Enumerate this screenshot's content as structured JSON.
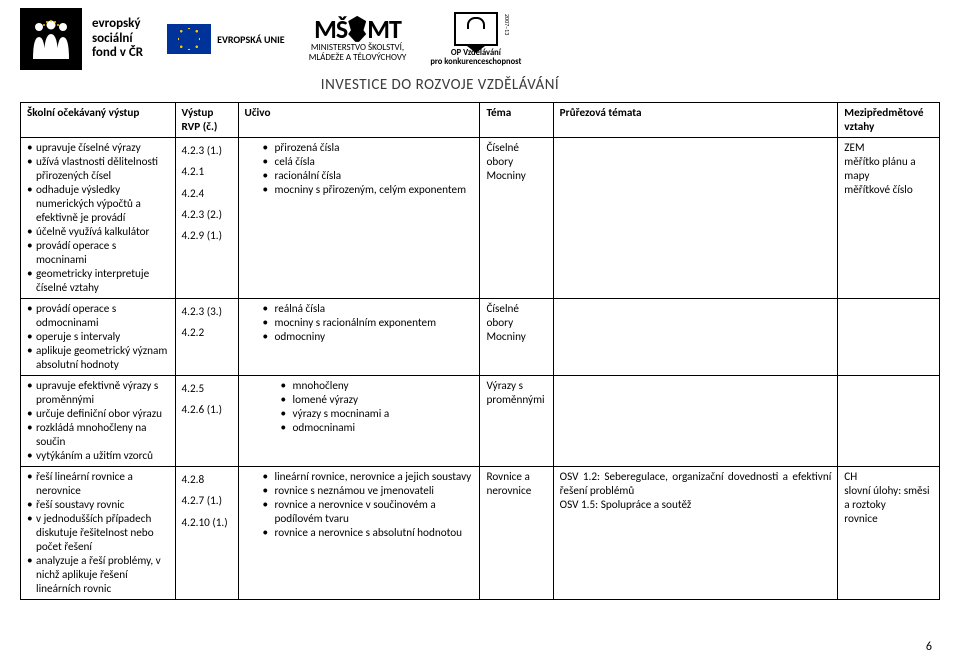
{
  "header": {
    "esf": {
      "line1": "evropský",
      "line2": "sociální",
      "line3": "fond v ČR"
    },
    "eu": "EVROPSKÁ UNIE",
    "msmt": {
      "line1": "MINISTERSTVO ŠKOLSTVÍ,",
      "line2": "MLÁDEŽE A TĚLOVÝCHOVY"
    },
    "opvk": {
      "line1": "OP Vzdělávání",
      "line2": "pro konkurenceschopnost",
      "side": "2007–13"
    },
    "tagline": "INVESTICE DO ROZVOJE VZDĚLÁVÁNÍ"
  },
  "table": {
    "headers": {
      "c1": "Školní očekávaný výstup",
      "c2a": "Výstup",
      "c2b": "RVP (č.)",
      "c3": "Učivo",
      "c4": "Téma",
      "c5": "Průřezová témata",
      "c6a": "Mezipředmětové",
      "c6b": "vztahy"
    },
    "rows": [
      {
        "outcomes": [
          "upravuje číselné výrazy",
          "užívá vlastnosti dělitelnosti přirozených čísel",
          "odhaduje výsledky numerických výpočtů a efektivně je provádí",
          "účelně využívá kalkulátor",
          "provádí operace s mocninami",
          "geometricky interpretuje číselné vztahy"
        ],
        "codes": [
          "4.2.3 (1.)",
          "4.2.1",
          "4.2.4",
          "4.2.3 (2.)",
          "4.2.9 (1.)"
        ],
        "ucivo": [
          "přirozená čísla",
          "celá čísla",
          "racionální čísla",
          "mocniny s přirozeným, celým exponentem"
        ],
        "tema": [
          "Číselné",
          "obory",
          "Mocniny"
        ],
        "pruz": "",
        "mez": [
          "ZEM",
          "měřítko plánu a mapy",
          "měřítkové číslo"
        ]
      },
      {
        "outcomes": [
          "provádí operace s odmocninami",
          "operuje s intervaly",
          "aplikuje geometrický význam absolutní hodnoty"
        ],
        "codes": [
          "4.2.3 (3.)",
          "4.2.2"
        ],
        "ucivo": [
          "reálná čísla",
          "mocniny s racionálním exponentem",
          "odmocniny"
        ],
        "tema": [
          "Číselné",
          "obory",
          "Mocniny"
        ],
        "pruz": "",
        "mez": []
      },
      {
        "outcomes": [
          "upravuje efektivně výrazy s proměnnými",
          "určuje definiční obor výrazu",
          "rozkládá mnohočleny na součin",
          "vytýkáním a užitím vzorců"
        ],
        "codes": [
          "4.2.5",
          "4.2.6 (1.)"
        ],
        "ucivo_groups": [
          [
            "mnohočleny",
            "lomené výrazy",
            "výrazy s mocninami a",
            "odmocninami"
          ]
        ],
        "tema": [
          "Výrazy s",
          "proměnnými"
        ],
        "pruz": "",
        "mez": []
      },
      {
        "outcomes": [
          "řeší lineární rovnice a nerovnice",
          "řeší soustavy rovnic",
          "v jednodušších případech diskutuje řešitelnost nebo počet řešení",
          "analyzuje a řeší problémy, v nichž aplikuje řešení lineárních rovnic"
        ],
        "codes": [
          "4.2.8",
          "4.2.7 (1.)",
          "4.2.10 (1.)"
        ],
        "ucivo": [
          "lineární rovnice, nerovnice a jejich soustavy",
          "rovnice s neznámou ve jmenovateli",
          "rovnice a nerovnice v součinovém a podílovém tvaru",
          "rovnice a nerovnice s absolutní hodnotou"
        ],
        "tema": [
          "Rovnice a",
          "nerovnice"
        ],
        "pruz": "OSV 1.2: Seberegulace, organizační dovednosti a efektivní řešení problémů\nOSV 1.5: Spolupráce a soutěž",
        "mez": [
          "CH",
          "slovní úlohy: směsi a roztoky",
          "rovnice"
        ]
      }
    ]
  },
  "pagenum": "6",
  "colors": {
    "text": "#000000",
    "background": "#ffffff",
    "border": "#000000",
    "eu_blue": "#003399",
    "eu_gold": "#ffcc00"
  }
}
